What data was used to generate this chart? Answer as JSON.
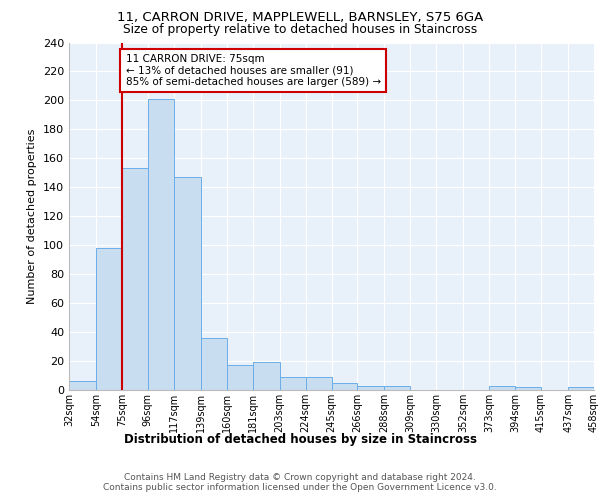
{
  "title1": "11, CARRON DRIVE, MAPPLEWELL, BARNSLEY, S75 6GA",
  "title2": "Size of property relative to detached houses in Staincross",
  "xlabel": "Distribution of detached houses by size in Staincross",
  "ylabel": "Number of detached properties",
  "annotation_line1": "11 CARRON DRIVE: 75sqm",
  "annotation_line2": "← 13% of detached houses are smaller (91)",
  "annotation_line3": "85% of semi-detached houses are larger (589) →",
  "property_size": 75,
  "bin_edges": [
    32,
    54,
    75,
    96,
    117,
    139,
    160,
    181,
    203,
    224,
    245,
    266,
    288,
    309,
    330,
    352,
    373,
    394,
    415,
    437,
    458
  ],
  "bar_heights": [
    6,
    98,
    153,
    201,
    147,
    36,
    17,
    19,
    9,
    9,
    5,
    3,
    3,
    0,
    0,
    0,
    3,
    2,
    0,
    2
  ],
  "bar_color": "#c9ddf0",
  "bar_edge_color": "#6aaee8",
  "vline_color": "#cc0000",
  "vline_x": 75,
  "ylim": [
    0,
    240
  ],
  "yticks": [
    0,
    20,
    40,
    60,
    80,
    100,
    120,
    140,
    160,
    180,
    200,
    220,
    240
  ],
  "footer1": "Contains HM Land Registry data © Crown copyright and database right 2024.",
  "footer2": "Contains public sector information licensed under the Open Government Licence v3.0.",
  "plot_bg_color": "#e8f0fa"
}
